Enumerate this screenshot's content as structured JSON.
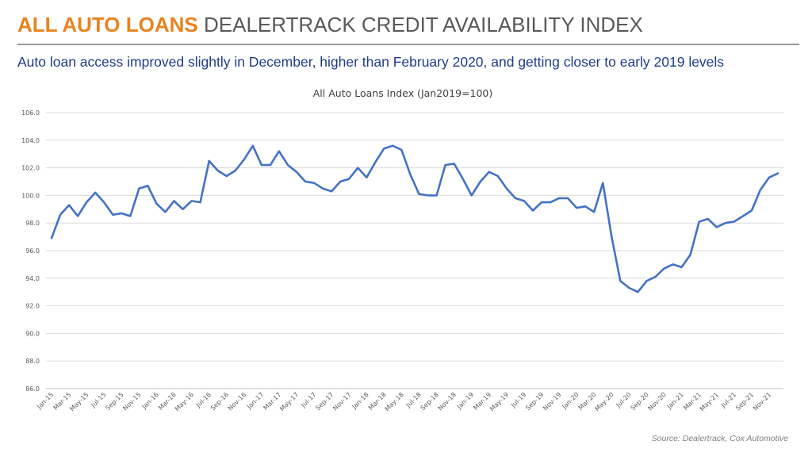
{
  "header": {
    "title_accent": "ALL AUTO LOANS",
    "title_rest": "DEALERTRACK CREDIT AVAILABILITY INDEX",
    "subtitle": "Auto loan access improved slightly in December, higher than February 2020, and getting closer to early 2019 levels",
    "accent_color": "#E8831E"
  },
  "footer": {
    "source": "Source: Dealertrack, Cox Automotive"
  },
  "chart_data": {
    "type": "line",
    "title": "All Auto Loans Index (Jan2019=100)",
    "xlabel": "",
    "ylabel": "",
    "ylim": [
      86,
      106
    ],
    "yticks": [
      "86.0",
      "88.0",
      "90.0",
      "92.0",
      "94.0",
      "96.0",
      "98.0",
      "100.0",
      "102.0",
      "104.0",
      "106.0"
    ],
    "grid": true,
    "line_color": "#4472C4",
    "x_tick_labels": [
      "Jan-15",
      "Mar-15",
      "May-15",
      "Jul-15",
      "Sep-15",
      "Nov-15",
      "Jan-16",
      "Mar-16",
      "May-16",
      "Jul-16",
      "Sep-16",
      "Nov-16",
      "Jan-17",
      "Mar-17",
      "May-17",
      "Jul-17",
      "Sep-17",
      "Nov-17",
      "Jan-18",
      "Mar-18",
      "May-18",
      "Jul-18",
      "Sep-18",
      "Nov-18",
      "Jan-19",
      "Mar-19",
      "May-19",
      "Jul-19",
      "Sep-19",
      "Nov-19",
      "Jan-20",
      "Mar-20",
      "May-20",
      "Jul-20",
      "Sep-20",
      "Nov-20",
      "Jan-21",
      "Mar-21",
      "May-21",
      "Jul-21",
      "Sep-21",
      "Nov-21"
    ],
    "x_start": "Jan-15",
    "x_end": "Dec-21",
    "values": [
      96.9,
      98.6,
      99.3,
      98.5,
      99.5,
      100.2,
      99.5,
      98.6,
      98.7,
      98.5,
      100.5,
      100.7,
      99.4,
      98.8,
      99.6,
      99.0,
      99.6,
      99.5,
      102.5,
      101.8,
      101.4,
      101.8,
      102.6,
      103.6,
      102.2,
      102.2,
      103.2,
      102.2,
      101.7,
      101.0,
      100.9,
      100.5,
      100.3,
      101.0,
      101.2,
      102.0,
      101.3,
      102.4,
      103.4,
      103.6,
      103.3,
      101.5,
      100.1,
      100.0,
      100.0,
      102.2,
      102.3,
      101.2,
      100.0,
      101.0,
      101.7,
      101.4,
      100.5,
      99.8,
      99.6,
      98.9,
      99.5,
      99.5,
      99.8,
      99.8,
      99.1,
      99.2,
      98.8,
      100.9,
      97.0,
      93.8,
      93.3,
      93.0,
      93.8,
      94.1,
      94.7,
      95.0,
      94.8,
      95.7,
      98.1,
      98.3,
      97.7,
      98.0,
      98.1,
      98.5,
      98.9,
      100.4,
      101.3,
      101.6
    ]
  }
}
